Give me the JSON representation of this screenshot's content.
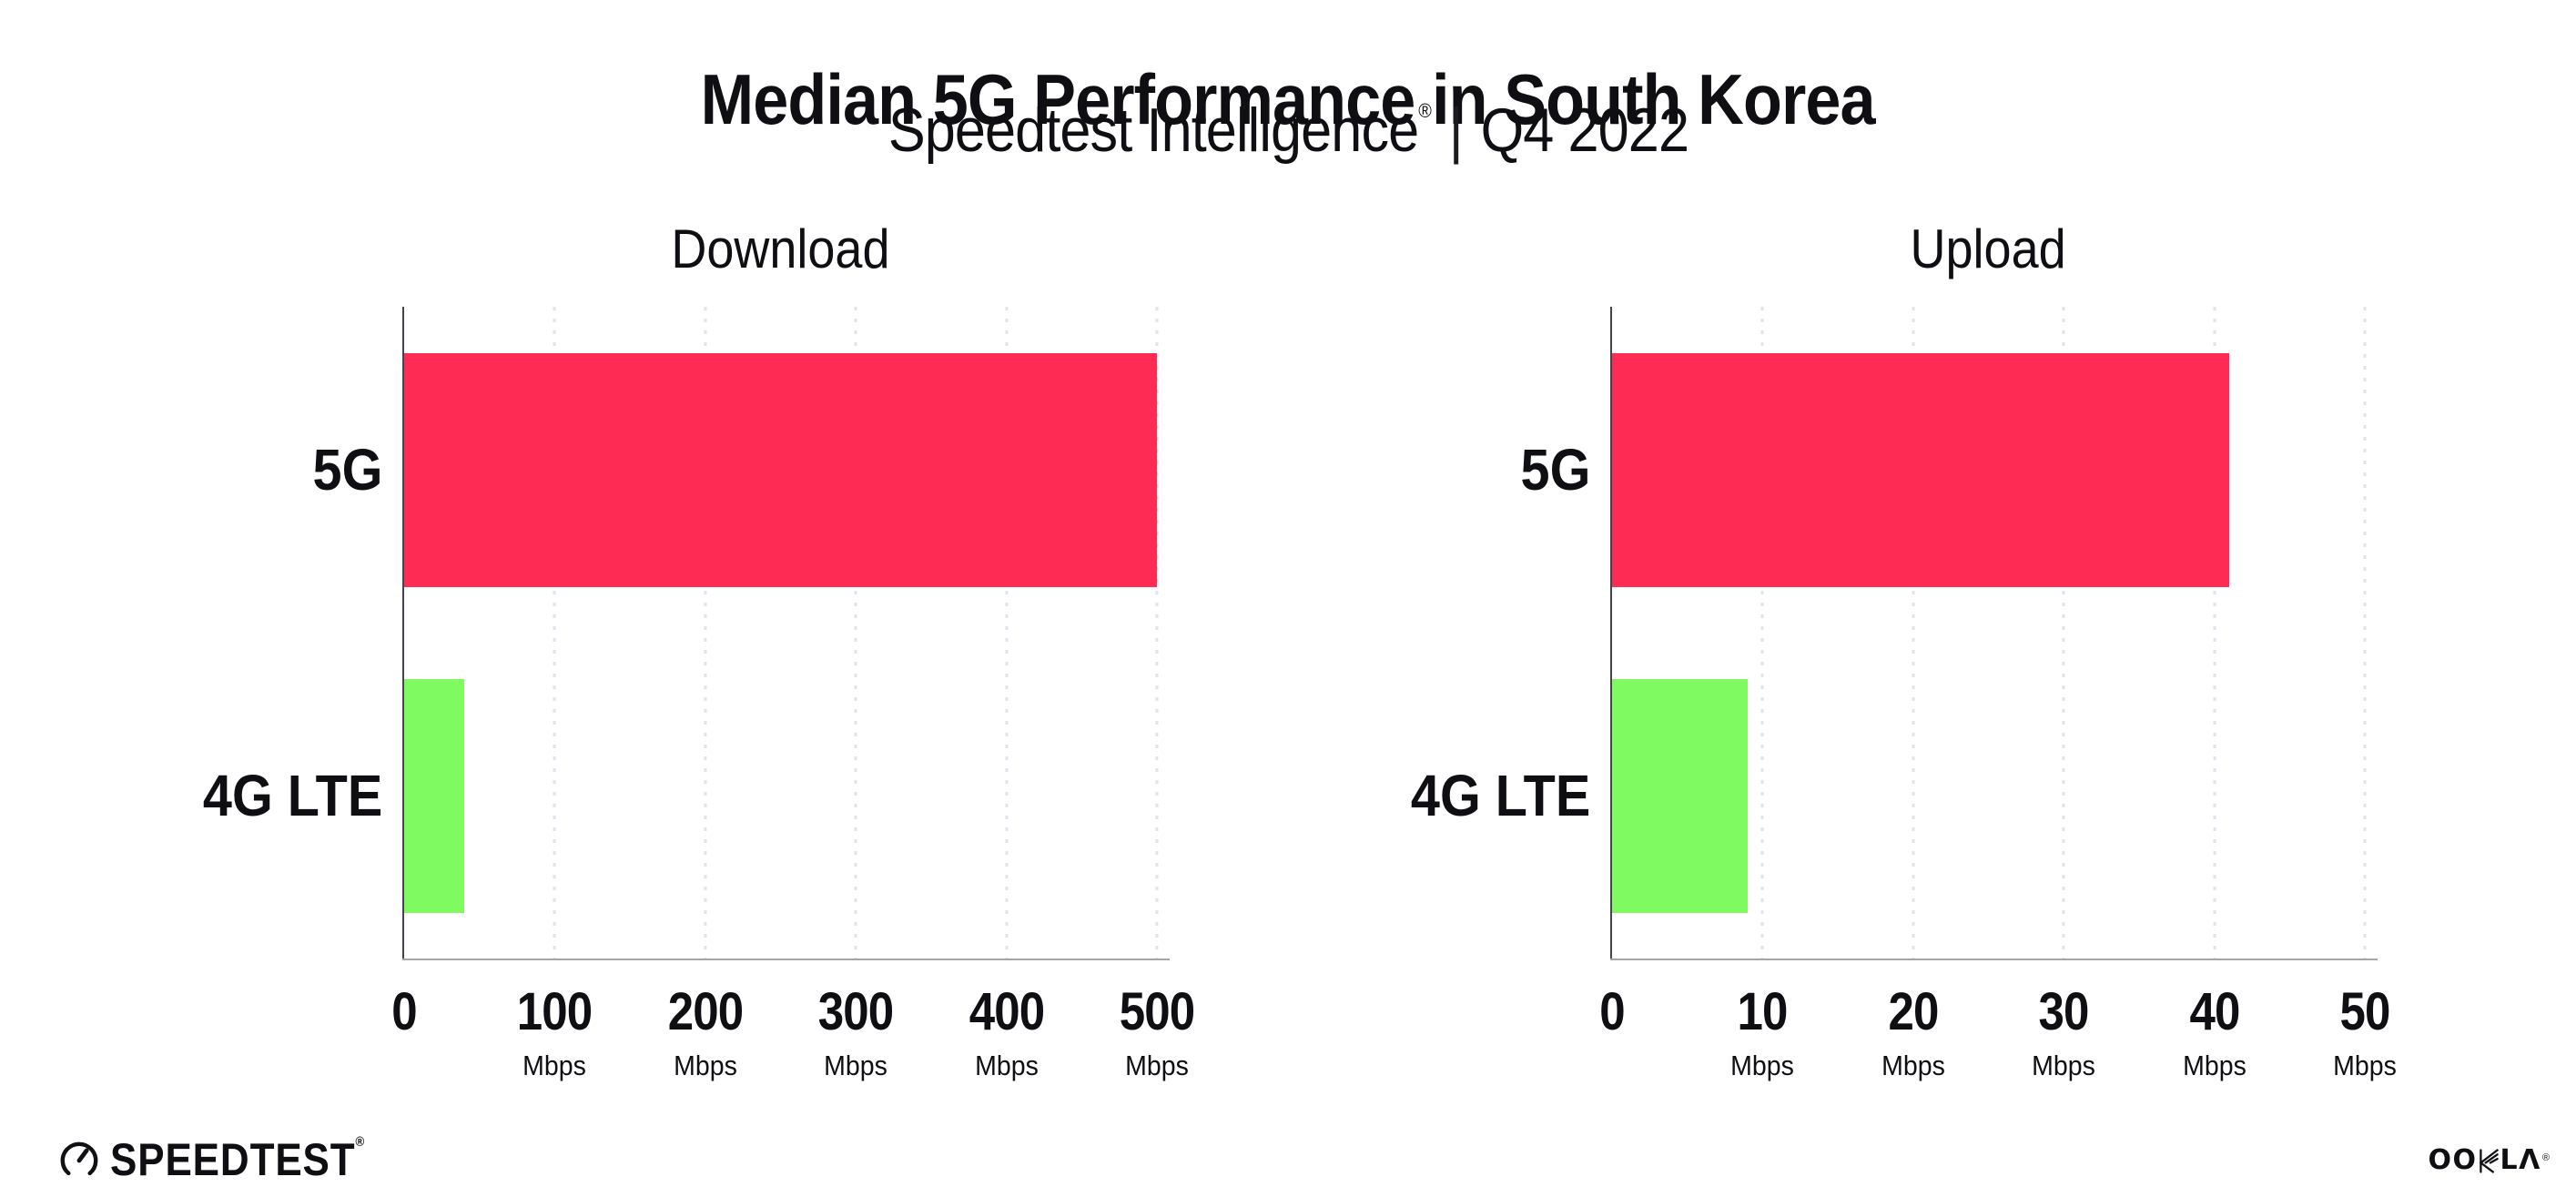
{
  "header": {
    "title": "Median 5G Performance in South Korea",
    "subtitle": {
      "product": "Speedtest Intelligence",
      "registered_mark": "®",
      "divider": "|",
      "period": "Q4 2022"
    }
  },
  "colors": {
    "bar_5g": "#fe2b55",
    "bar_4g_lte": "#80fa61",
    "gridline": "#e2e2ec",
    "y_axis": "#47424e",
    "x_axis": "#a6a6a6",
    "text": "#0e0e13"
  },
  "chart_data": [
    {
      "type": "bar",
      "orientation": "horizontal",
      "title": "Download",
      "categories": [
        "5G",
        "4G LTE"
      ],
      "values": [
        500,
        40
      ],
      "value_unit": "Mbps",
      "xlim": [
        0,
        500
      ],
      "xticks": [
        0,
        100,
        200,
        300,
        400,
        500
      ],
      "xtick_unit": "Mbps",
      "grid": "vertical-dotted",
      "legend": "none",
      "bar_colors": [
        "#fe2b55",
        "#80fa61"
      ]
    },
    {
      "type": "bar",
      "orientation": "horizontal",
      "title": "Upload",
      "categories": [
        "5G",
        "4G LTE"
      ],
      "values": [
        41,
        9
      ],
      "value_unit": "Mbps",
      "xlim": [
        0,
        50
      ],
      "xticks": [
        0,
        10,
        20,
        30,
        40,
        50
      ],
      "xtick_unit": "Mbps",
      "grid": "vertical-dotted",
      "legend": "none",
      "bar_colors": [
        "#fe2b55",
        "#80fa61"
      ]
    }
  ],
  "footer": {
    "speedtest": {
      "label": "SPEEDTEST",
      "mark": "®"
    },
    "ookla": {
      "label": "OOKLA",
      "part_oo": "OO",
      "part_l": "L",
      "part_a": "Λ",
      "mark": "®"
    }
  }
}
